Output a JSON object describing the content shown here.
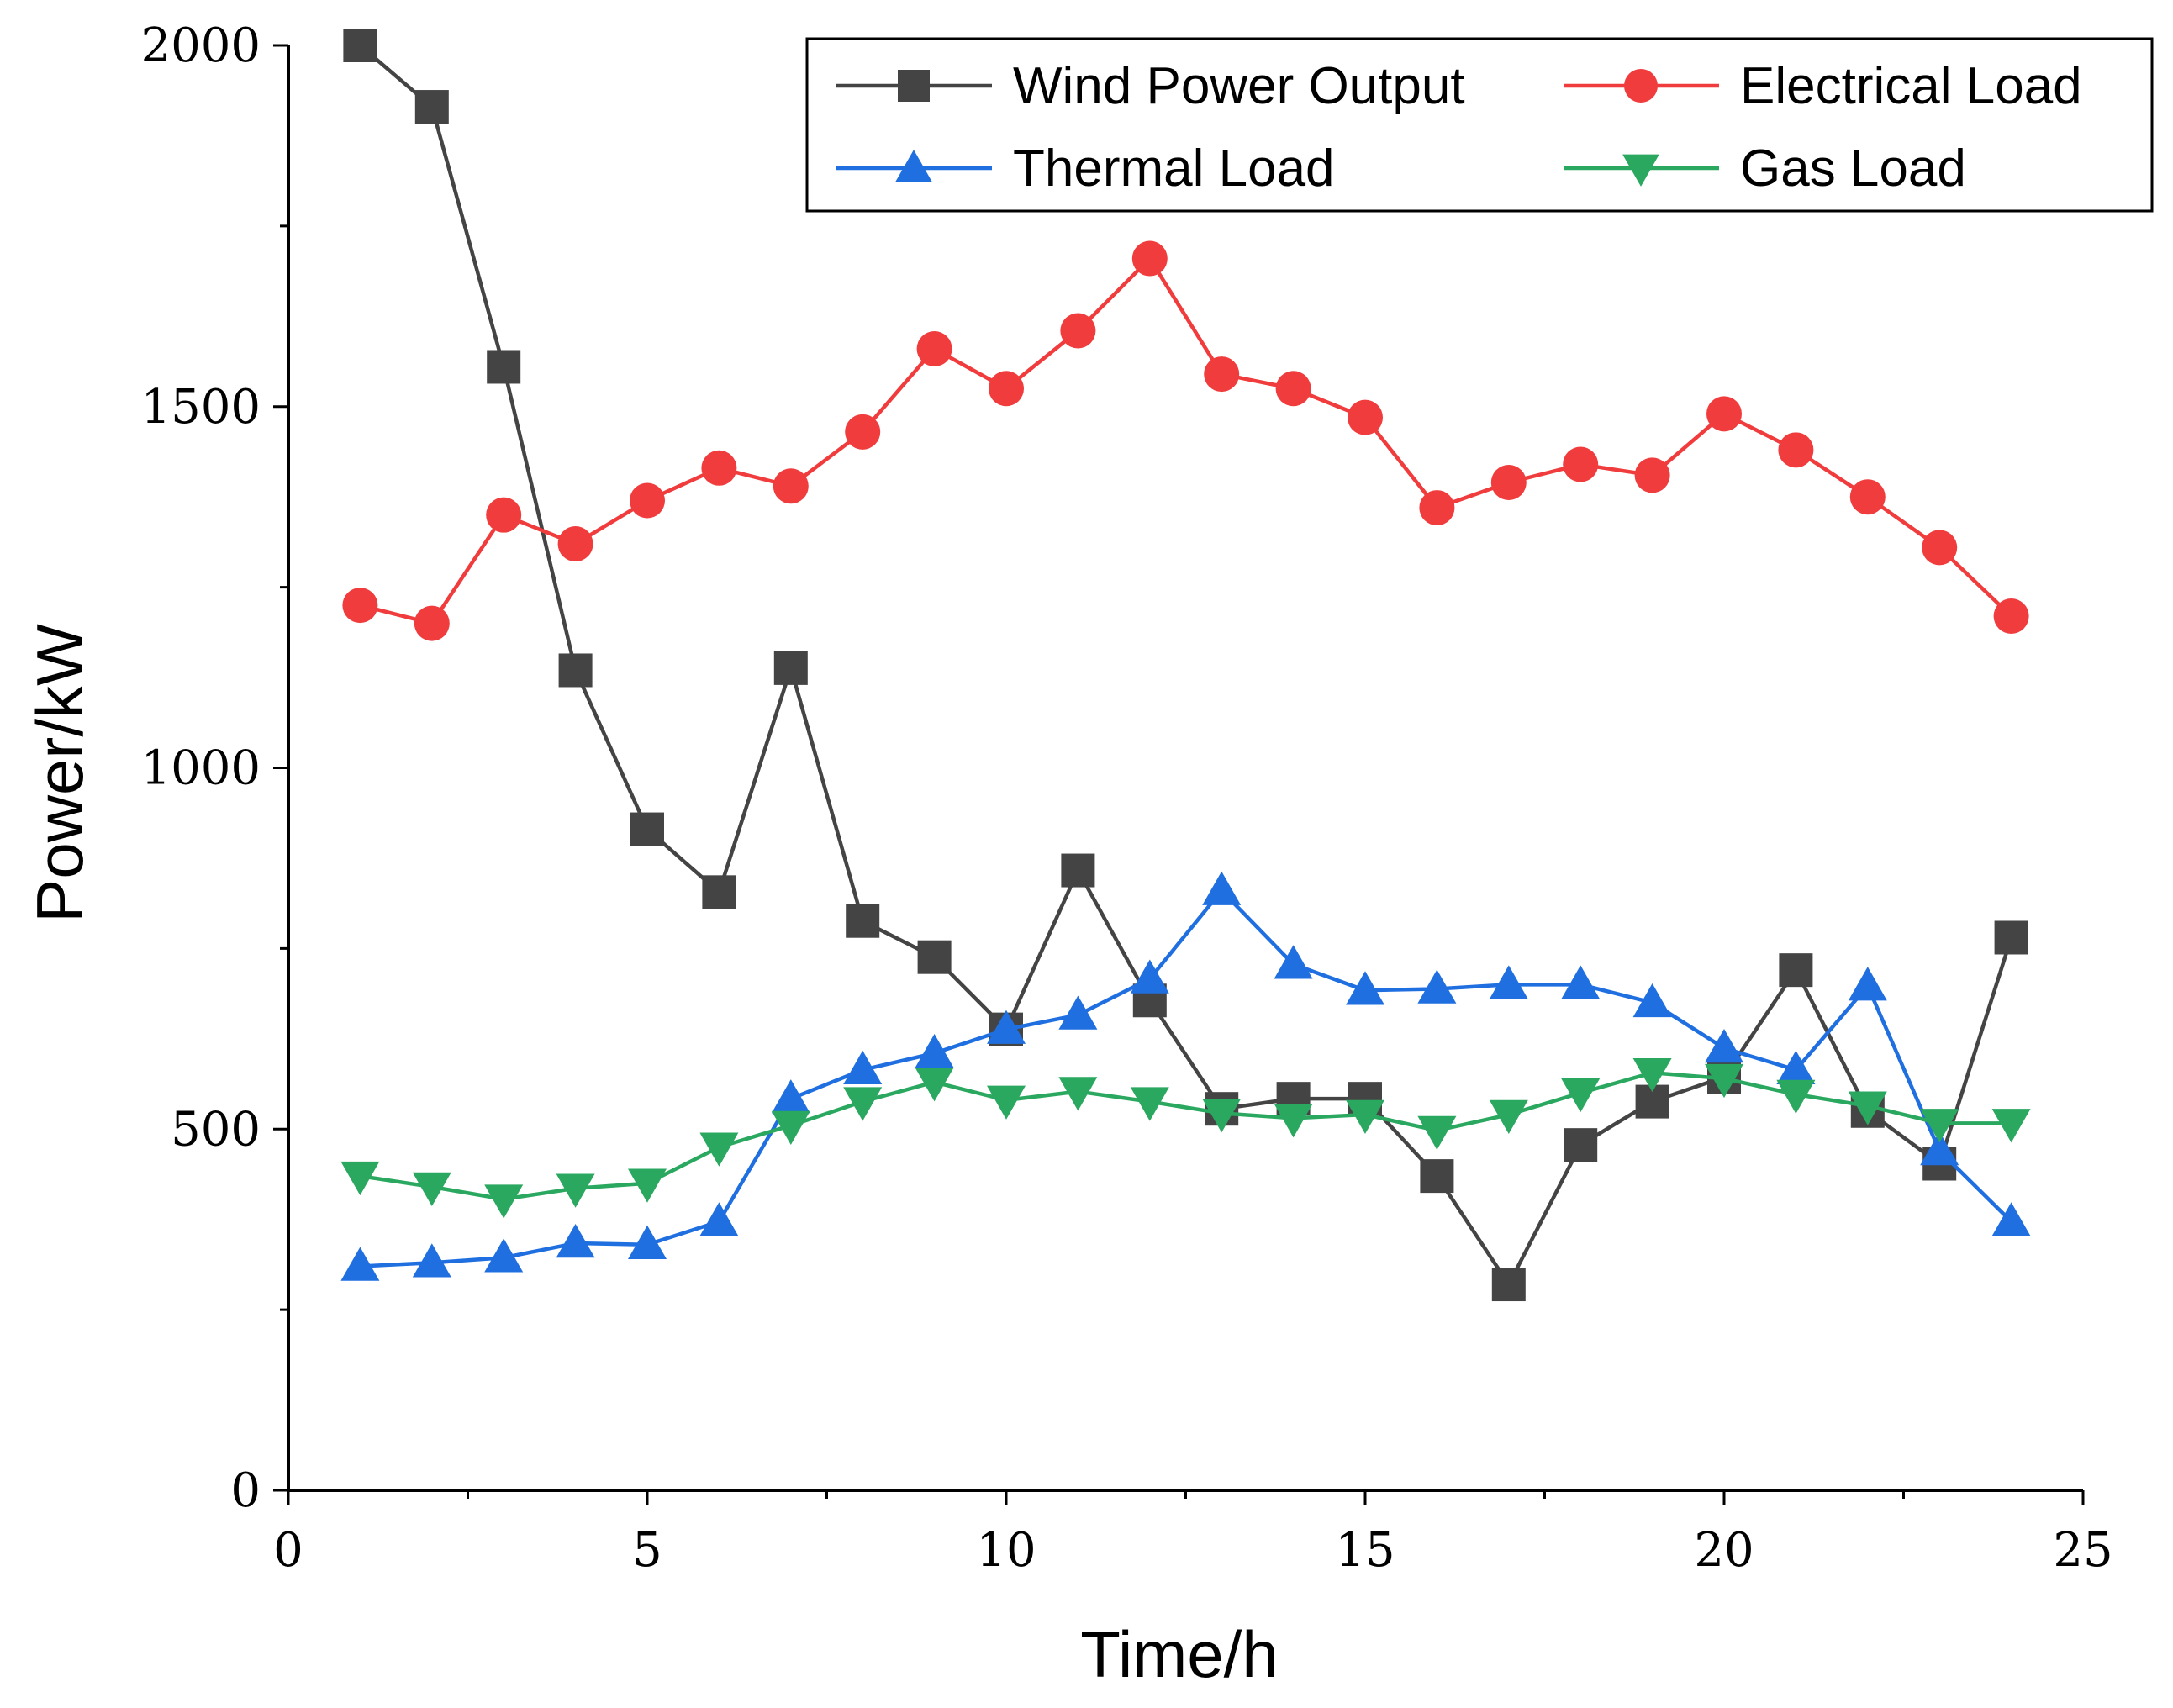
{
  "chart_data": {
    "type": "line",
    "title": "",
    "xlabel": "Time/h",
    "ylabel": "Power/kW",
    "xlim": [
      0,
      25
    ],
    "ylim": [
      0,
      2000
    ],
    "x_ticks": [
      0,
      5,
      10,
      15,
      20,
      25
    ],
    "y_ticks": [
      0,
      500,
      1000,
      1500,
      2000
    ],
    "x_tick_labels": [
      "0",
      "5",
      "10",
      "15",
      "20",
      "25"
    ],
    "y_tick_labels": [
      "0",
      "500",
      "1000",
      "1500",
      "2000"
    ],
    "grid": false,
    "legend_position": "top-right",
    "x": [
      1,
      2,
      3,
      4,
      5,
      6,
      7,
      8,
      9,
      10,
      11,
      12,
      13,
      14,
      15,
      16,
      17,
      18,
      19,
      20,
      21,
      22,
      23,
      24
    ],
    "series": [
      {
        "name": "Wind Power Output",
        "color": "#444444",
        "marker": "square",
        "values": [
          2000,
          1915,
          1555,
          1135,
          915,
          828,
          1138,
          788,
          738,
          638,
          858,
          678,
          528,
          542,
          542,
          435,
          285,
          478,
          538,
          572,
          720,
          525,
          452,
          765
        ]
      },
      {
        "name": "Electrical Load",
        "color": "#f03c3c",
        "marker": "circle",
        "values": [
          1225,
          1200,
          1350,
          1310,
          1370,
          1415,
          1390,
          1465,
          1580,
          1525,
          1605,
          1705,
          1545,
          1525,
          1485,
          1360,
          1395,
          1420,
          1405,
          1490,
          1440,
          1375,
          1305,
          1210
        ]
      },
      {
        "name": "Thermal Load",
        "color": "#1f6fe0",
        "marker": "triangle-up",
        "values": [
          310,
          315,
          322,
          342,
          340,
          372,
          542,
          582,
          605,
          638,
          658,
          708,
          830,
          728,
          692,
          694,
          700,
          700,
          675,
          612,
          582,
          698,
          470,
          372
        ]
      },
      {
        "name": "Gas Load",
        "color": "#2aa860",
        "marker": "triangle-down",
        "values": [
          435,
          420,
          403,
          418,
          425,
          475,
          505,
          538,
          565,
          540,
          552,
          538,
          522,
          515,
          520,
          498,
          520,
          550,
          578,
          570,
          548,
          532,
          508,
          508
        ]
      }
    ]
  }
}
